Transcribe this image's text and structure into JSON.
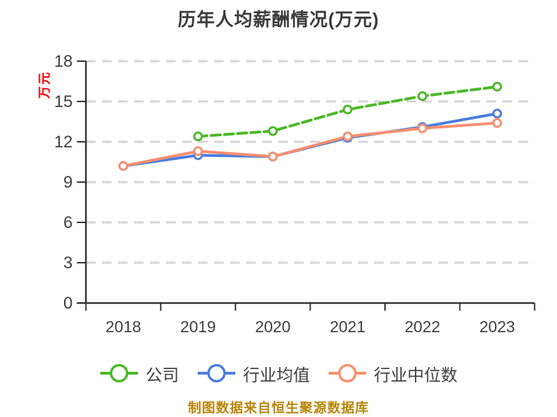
{
  "chart_data": {
    "type": "line",
    "title": "历年人均薪酬情况(万元)",
    "ylabel": "万元",
    "footer": "制图数据来自恒生聚源数据库",
    "x": [
      "2018",
      "2019",
      "2020",
      "2021",
      "2022",
      "2023"
    ],
    "ylim": [
      0,
      18
    ],
    "yticks": [
      0,
      3,
      6,
      9,
      12,
      15,
      18
    ],
    "grid": "horizontal dashed gridlines, white background",
    "legend_position": "bottom",
    "series": [
      {
        "name": "公司",
        "color": "#4ab926",
        "line_style": "dashed",
        "marker": "circle-white-fill",
        "values": [
          null,
          12.4,
          12.8,
          14.4,
          15.4,
          16.1
        ]
      },
      {
        "name": "行业均值",
        "color": "#4a7edf",
        "line_style": "solid",
        "marker": "circle-white-fill",
        "values": [
          10.2,
          11.0,
          10.9,
          12.3,
          13.1,
          14.1
        ]
      },
      {
        "name": "行业中位数",
        "color": "#f98e6e",
        "line_style": "solid",
        "marker": "circle-white-fill",
        "values": [
          10.2,
          11.3,
          10.9,
          12.4,
          13.0,
          13.4
        ]
      }
    ],
    "colors": {
      "axis": "#333333",
      "gridline": "#d4d4d4",
      "tick_text": "#3f3f3f",
      "title_text": "#3a3a3a",
      "ylabel_text": "#ff0000",
      "footer_text": "#b8860b"
    }
  }
}
